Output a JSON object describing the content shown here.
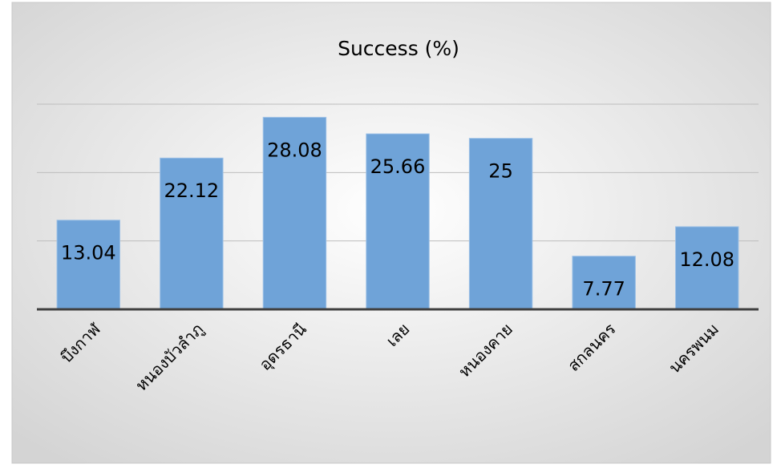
{
  "chart_data": {
    "type": "bar",
    "title": "Success (%)",
    "categories": [
      "บึงกาฬ",
      "หนองบัวลำภู",
      "อุดรธานี",
      "เลย",
      "หนองคาย",
      "สกลนคร",
      "นครพนม"
    ],
    "values": [
      13.04,
      22.12,
      28.08,
      25.66,
      25,
      7.77,
      12.08
    ],
    "color": "#6fa3d8",
    "ylim": [
      0,
      30
    ],
    "yticks": [
      0,
      10,
      20,
      30
    ],
    "grid": true
  }
}
